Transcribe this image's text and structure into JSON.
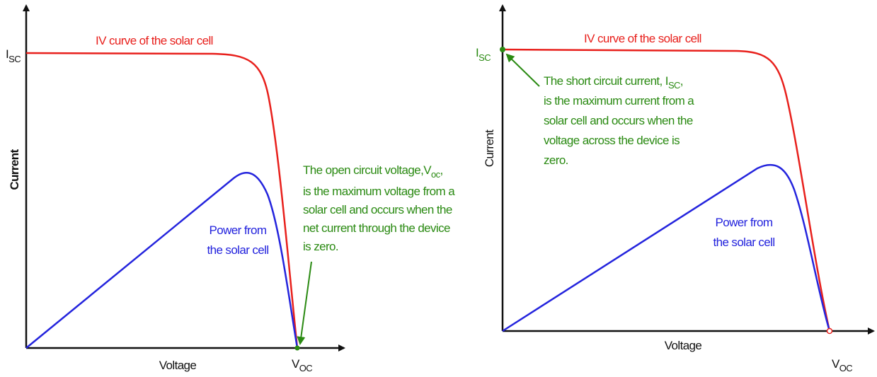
{
  "panels": [
    {
      "isc": {
        "main": "I",
        "sub": "SC"
      },
      "curve_label": "IV curve of the solar cell",
      "y_axis_label": "Current",
      "x_axis_label": "Voltage",
      "voc": {
        "main": "V",
        "sub": "OC"
      },
      "power_label": [
        "Power from",
        "the solar cell"
      ],
      "annotation": {
        "first": {
          "text": "The open circuit voltage,V",
          "sub": "oc",
          "after": ","
        },
        "lines": [
          "is the maximum voltage from a",
          "solar cell and occurs when the",
          "net current through the device",
          "is zero."
        ]
      }
    },
    {
      "isc": {
        "main": "I",
        "sub": "SC"
      },
      "curve_label": "IV curve of the solar cell",
      "y_axis_label": "Current",
      "x_axis_label": "Voltage",
      "voc": {
        "main": "V",
        "sub": "OC"
      },
      "power_label": [
        "Power from",
        "the solar cell"
      ],
      "annotation": {
        "first": {
          "text": "The short circuit current, I",
          "sub": "SC",
          "after": ","
        },
        "lines": [
          "is the maximum current from a",
          "solar cell and occurs when the",
          "voltage across the device is",
          "zero."
        ]
      }
    }
  ]
}
